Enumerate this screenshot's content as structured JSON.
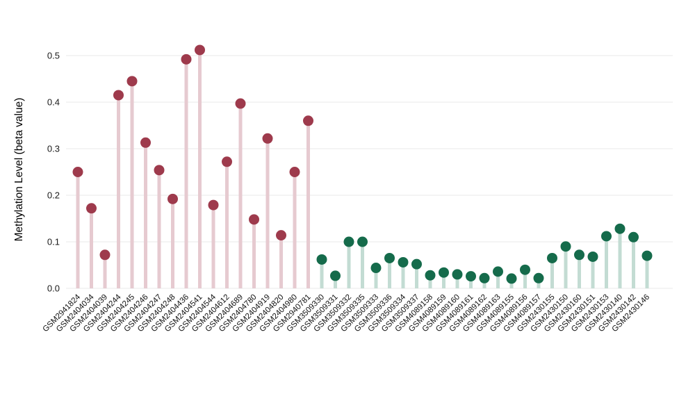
{
  "chart_data": {
    "type": "lollipop",
    "title": "",
    "xlabel": "",
    "ylabel": "Methylation Level (beta value)",
    "ylim": [
      0,
      0.55
    ],
    "yticks": [
      0.0,
      0.1,
      0.2,
      0.3,
      0.4,
      0.5
    ],
    "grid": true,
    "legend": null,
    "colors": {
      "background": "#ffffff",
      "grid": "#e9e9e9",
      "tick_text": "#1a1a1a",
      "x_label_text": "#111111"
    },
    "groups": [
      {
        "name": "group-red",
        "point_color": "#9e3a4c",
        "stem_color": "#e6cad0"
      },
      {
        "name": "group-green",
        "point_color": "#156b4b",
        "stem_color": "#c3dcd3"
      }
    ],
    "points": [
      {
        "label": "GSM2941824",
        "value": 0.25,
        "group": 0
      },
      {
        "label": "GSM2404034",
        "value": 0.172,
        "group": 0
      },
      {
        "label": "GSM2404039",
        "value": 0.072,
        "group": 0
      },
      {
        "label": "GSM2404244",
        "value": 0.415,
        "group": 0
      },
      {
        "label": "GSM2404245",
        "value": 0.445,
        "group": 0
      },
      {
        "label": "GSM2404246",
        "value": 0.313,
        "group": 0
      },
      {
        "label": "GSM2404247",
        "value": 0.254,
        "group": 0
      },
      {
        "label": "GSM2404248",
        "value": 0.192,
        "group": 0
      },
      {
        "label": "GSM2404436",
        "value": 0.492,
        "group": 0
      },
      {
        "label": "GSM2404541",
        "value": 0.512,
        "group": 0
      },
      {
        "label": "GSM2404544",
        "value": 0.179,
        "group": 0
      },
      {
        "label": "GSM2404612",
        "value": 0.272,
        "group": 0
      },
      {
        "label": "GSM2404689",
        "value": 0.397,
        "group": 0
      },
      {
        "label": "GSM2404780",
        "value": 0.148,
        "group": 0
      },
      {
        "label": "GSM2404919",
        "value": 0.322,
        "group": 0
      },
      {
        "label": "GSM2404820",
        "value": 0.114,
        "group": 0
      },
      {
        "label": "GSM2404980",
        "value": 0.25,
        "group": 0
      },
      {
        "label": "GSM2940781",
        "value": 0.36,
        "group": 0
      },
      {
        "label": "GSM3509330",
        "value": 0.062,
        "group": 1
      },
      {
        "label": "GSM3509331",
        "value": 0.027,
        "group": 1
      },
      {
        "label": "GSM3509332",
        "value": 0.1,
        "group": 1
      },
      {
        "label": "GSM3509335",
        "value": 0.1,
        "group": 1
      },
      {
        "label": "GSM3509333",
        "value": 0.044,
        "group": 1
      },
      {
        "label": "GSM3509336",
        "value": 0.065,
        "group": 1
      },
      {
        "label": "GSM3509334",
        "value": 0.056,
        "group": 1
      },
      {
        "label": "GSM3509337",
        "value": 0.052,
        "group": 1
      },
      {
        "label": "GSM4089158",
        "value": 0.028,
        "group": 1
      },
      {
        "label": "GSM4089159",
        "value": 0.034,
        "group": 1
      },
      {
        "label": "GSM4089160",
        "value": 0.03,
        "group": 1
      },
      {
        "label": "GSM4089161",
        "value": 0.026,
        "group": 1
      },
      {
        "label": "GSM4089162",
        "value": 0.022,
        "group": 1
      },
      {
        "label": "GSM4089163",
        "value": 0.036,
        "group": 1
      },
      {
        "label": "GSM4089155",
        "value": 0.021,
        "group": 1
      },
      {
        "label": "GSM4089156",
        "value": 0.04,
        "group": 1
      },
      {
        "label": "GSM4089157",
        "value": 0.022,
        "group": 1
      },
      {
        "label": "GSM2430155",
        "value": 0.065,
        "group": 1
      },
      {
        "label": "GSM2430150",
        "value": 0.09,
        "group": 1
      },
      {
        "label": "GSM2430160",
        "value": 0.072,
        "group": 1
      },
      {
        "label": "GSM2430151",
        "value": 0.068,
        "group": 1
      },
      {
        "label": "GSM2430153",
        "value": 0.112,
        "group": 1
      },
      {
        "label": "GSM2430140",
        "value": 0.128,
        "group": 1
      },
      {
        "label": "GSM2430142",
        "value": 0.11,
        "group": 1
      },
      {
        "label": "GSM2430146",
        "value": 0.07,
        "group": 1
      }
    ]
  }
}
